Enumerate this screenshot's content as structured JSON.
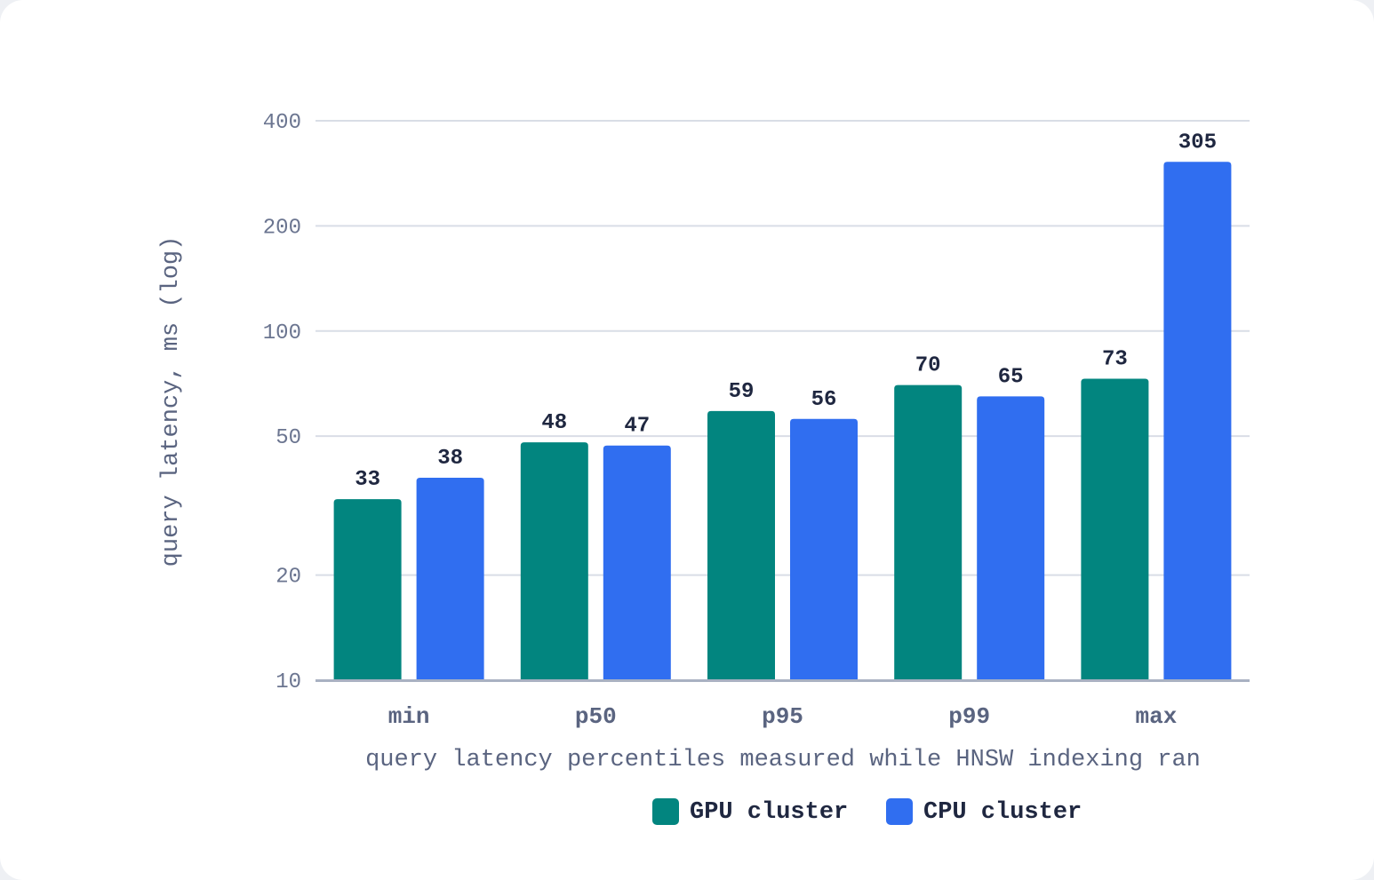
{
  "chart_data": {
    "type": "bar",
    "scale": "log",
    "categories": [
      "min",
      "p50",
      "p95",
      "p99",
      "max"
    ],
    "series": [
      {
        "name": "GPU cluster",
        "color": "#02857f",
        "values": [
          33,
          48,
          59,
          70,
          73
        ]
      },
      {
        "name": "CPU cluster",
        "color": "#306ef0",
        "values": [
          38,
          47,
          56,
          65,
          305
        ]
      }
    ],
    "xlabel": "query latency percentiles measured while HNSW indexing ran",
    "ylabel": "query latency, ms (log)",
    "ylim": [
      10,
      400
    ],
    "yticks": [
      10,
      20,
      50,
      100,
      200,
      400
    ],
    "grid": true,
    "legend": "bottom",
    "data_labels": true
  }
}
